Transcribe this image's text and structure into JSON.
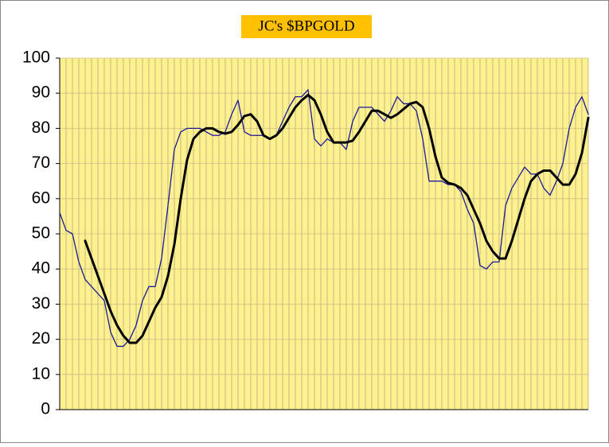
{
  "chart_data": {
    "type": "line",
    "title": "JC's $BPGOLD",
    "categories": [
      null,
      null,
      null,
      null,
      null,
      null,
      null,
      null,
      null,
      null,
      null,
      null,
      null,
      null,
      null,
      null,
      null,
      null,
      null,
      null,
      null,
      null,
      null,
      null,
      null,
      null,
      null,
      null,
      null,
      null,
      null,
      null,
      null,
      null,
      null,
      null,
      null,
      null,
      null,
      null,
      null,
      null,
      null,
      null,
      null,
      null,
      null,
      null,
      null,
      null,
      null,
      null,
      null,
      null,
      null,
      null,
      null,
      null,
      null,
      null,
      null,
      null,
      null,
      null,
      null,
      null,
      null,
      null,
      null,
      null,
      null,
      null,
      null,
      null,
      null,
      null,
      null,
      null,
      null,
      null,
      null,
      null,
      null,
      null
    ],
    "series": [
      {
        "color": "#1a1a9a",
        "width": 1.3,
        "values": [
          56,
          51,
          50,
          42,
          37,
          35,
          33,
          31,
          22,
          18,
          18,
          20,
          24,
          31,
          35,
          35,
          43,
          58,
          74,
          79,
          80,
          80,
          80,
          79,
          78,
          78,
          79,
          84,
          88,
          79,
          78,
          78,
          78,
          77,
          78,
          82,
          86,
          89,
          89,
          91,
          77,
          75,
          77,
          76,
          76,
          74,
          82,
          86,
          86,
          86,
          84,
          82,
          85,
          89,
          87,
          87,
          85,
          77,
          65,
          65,
          65,
          64,
          64,
          62,
          57,
          53,
          41,
          40,
          42,
          42,
          58,
          63,
          66,
          69,
          67,
          67,
          63,
          61,
          65,
          70,
          80,
          86,
          89,
          84
        ]
      },
      {
        "color": "#000000",
        "width": 3,
        "values": [
          null,
          null,
          null,
          null,
          48,
          43,
          38,
          33,
          28,
          24,
          21,
          19,
          19,
          21,
          25,
          29,
          32,
          38,
          47,
          60,
          71,
          77,
          79,
          80,
          80,
          79,
          78.5,
          79,
          81,
          83.5,
          84,
          82,
          78,
          77,
          78,
          80,
          83,
          86,
          88,
          89.5,
          88,
          84,
          79,
          76,
          76,
          76,
          76.5,
          79,
          82,
          85,
          85,
          84,
          83,
          84,
          85.5,
          87,
          87.5,
          86,
          80,
          72,
          66,
          64.5,
          64,
          63,
          61,
          57,
          53,
          48,
          45,
          43,
          43,
          48,
          54,
          60,
          65,
          67,
          68,
          68,
          66,
          64,
          64,
          67,
          73,
          83
        ]
      }
    ],
    "ylim": [
      0,
      100
    ],
    "yticks": [
      0,
      10,
      20,
      30,
      40,
      50,
      60,
      70,
      80,
      90,
      100
    ],
    "background": "#fdf08e",
    "grid": true
  }
}
